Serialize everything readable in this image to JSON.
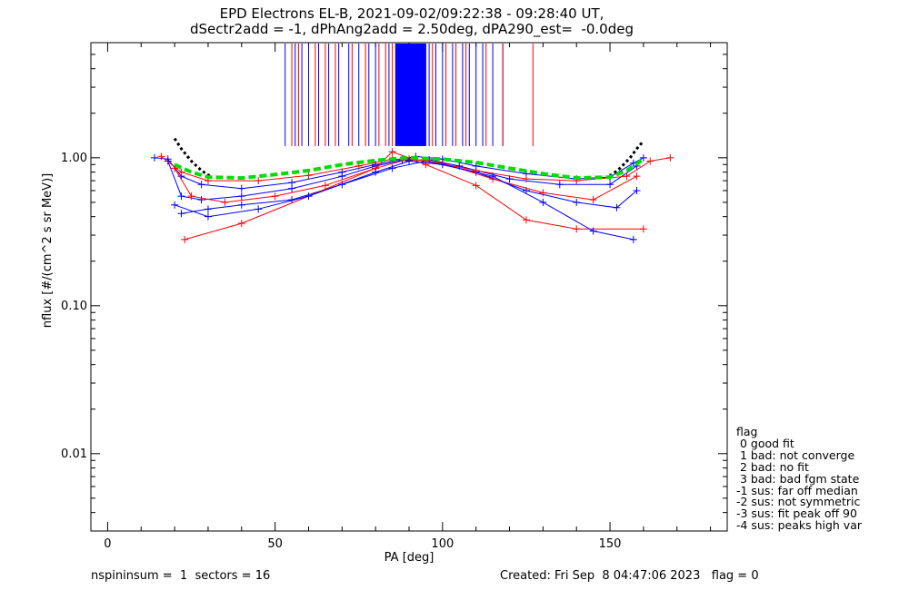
{
  "chart_data": {
    "type": "line",
    "title": "EPD Electrons EL-B, 2021-09-02/09:22:38 - 09:28:40 UT,",
    "subtitle": "dSectr2add = -1, dPhAng2add = 2.50deg, dPA290_est=  -0.0deg",
    "xlabel": "PA [deg]",
    "ylabel": "nflux [#/(cm^2 s sr MeV)]",
    "xlim": [
      -5,
      185
    ],
    "ylim": [
      0.003,
      6
    ],
    "yscale": "log",
    "xticks": [
      "0",
      "50",
      "100",
      "150"
    ],
    "yticks": [
      "0.01",
      "0.10",
      "1.00"
    ],
    "grid": false,
    "colors": {
      "blue": "#0000ff",
      "red": "#ff0000",
      "green": "#00dd00",
      "black": "#000000"
    },
    "series": [
      {
        "color": "blue",
        "x": [
          14,
          18,
          22,
          28,
          40,
          55,
          70,
          80,
          88,
          92,
          100,
          110,
          125,
          140,
          150,
          157,
          160
        ],
        "y": [
          1.0,
          0.98,
          0.75,
          0.66,
          0.62,
          0.68,
          0.8,
          0.9,
          0.98,
          1.02,
          0.98,
          0.88,
          0.78,
          0.72,
          0.74,
          0.92,
          1.0
        ]
      },
      {
        "color": "blue",
        "x": [
          18,
          22,
          28,
          40,
          55,
          70,
          80,
          88,
          96,
          105,
          120,
          135,
          150,
          158
        ],
        "y": [
          0.95,
          0.55,
          0.52,
          0.55,
          0.62,
          0.75,
          0.88,
          0.96,
          0.97,
          0.88,
          0.72,
          0.66,
          0.66,
          0.88
        ]
      },
      {
        "color": "blue",
        "x": [
          22,
          30,
          40,
          55,
          70,
          85,
          95,
          110,
          125,
          140,
          152,
          158
        ],
        "y": [
          0.42,
          0.45,
          0.48,
          0.52,
          0.66,
          0.85,
          0.95,
          0.8,
          0.6,
          0.5,
          0.46,
          0.6
        ]
      },
      {
        "color": "red",
        "x": [
          16,
          22,
          30,
          45,
          60,
          75,
          85,
          95,
          110,
          125,
          140,
          155,
          162,
          168
        ],
        "y": [
          1.02,
          0.8,
          0.7,
          0.7,
          0.76,
          0.88,
          0.98,
          0.96,
          0.82,
          0.72,
          0.7,
          0.75,
          0.95,
          1.0
        ]
      },
      {
        "color": "red",
        "x": [
          20,
          25,
          35,
          50,
          65,
          80,
          90,
          100,
          115,
          130,
          145,
          158
        ],
        "y": [
          0.85,
          0.55,
          0.5,
          0.55,
          0.65,
          0.85,
          0.98,
          0.92,
          0.72,
          0.58,
          0.52,
          0.75
        ]
      },
      {
        "color": "red",
        "x": [
          23,
          40,
          60,
          80,
          85,
          95,
          110,
          125,
          140,
          160
        ],
        "y": [
          0.28,
          0.36,
          0.55,
          0.85,
          1.1,
          0.9,
          0.65,
          0.38,
          0.33,
          0.33
        ]
      },
      {
        "color": "blue",
        "x": [
          20,
          30,
          45,
          60,
          80,
          90,
          100,
          115,
          130,
          145,
          157
        ],
        "y": [
          0.48,
          0.4,
          0.45,
          0.55,
          0.8,
          0.95,
          0.9,
          0.75,
          0.5,
          0.32,
          0.28
        ]
      },
      {
        "color": "black",
        "x": [
          20,
          22,
          25,
          28,
          31
        ],
        "y": [
          1.35,
          1.15,
          0.95,
          0.82,
          0.74
        ]
      },
      {
        "color": "black",
        "x": [
          150,
          153,
          156,
          158,
          160
        ],
        "y": [
          0.75,
          0.85,
          1.0,
          1.15,
          1.3
        ]
      },
      {
        "color": "green",
        "x": [
          20,
          25,
          30,
          40,
          50,
          60,
          70,
          80,
          90,
          100,
          110,
          120,
          130,
          140,
          150,
          155,
          160
        ],
        "y": [
          0.9,
          0.8,
          0.74,
          0.73,
          0.77,
          0.82,
          0.9,
          0.96,
          1.0,
          0.98,
          0.93,
          0.85,
          0.78,
          0.73,
          0.74,
          0.82,
          0.98
        ]
      }
    ],
    "spikes": {
      "blue": [
        53,
        56,
        58,
        60,
        63,
        66,
        69,
        72,
        75,
        78,
        80,
        84,
        86,
        87,
        88,
        89,
        90,
        91,
        92,
        93,
        94,
        95,
        96,
        98,
        100,
        103,
        106,
        108,
        110,
        112,
        115,
        118
      ],
      "red": [
        55,
        57,
        62,
        65,
        68,
        73,
        77,
        81,
        83,
        85,
        97,
        101,
        104,
        107,
        113,
        118,
        127
      ]
    },
    "legend": {
      "title": "flag",
      "entries": [
        " 0 good fit",
        " 1 bad: not converge",
        " 2 bad: no fit",
        " 3 bad: bad fgm state",
        "-1 sus: far off median",
        "-2 sus: not symmetric",
        "-3 sus: fit peak off 90",
        "-4 sus: peaks high var"
      ]
    }
  },
  "footer": {
    "left": "nspininsum =  1  sectors = 16",
    "right": "Created: Fri Sep  8 04:47:06 2023   flag = 0"
  }
}
